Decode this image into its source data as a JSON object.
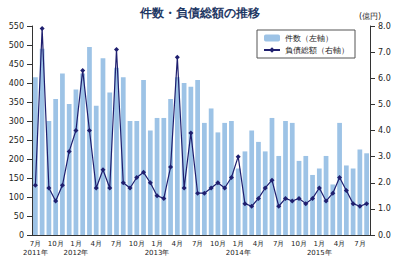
{
  "chart_data": {
    "type": "bar",
    "title": "件数・負債総額の推移",
    "categories": [
      "7月\n2011年",
      null,
      null,
      "10月",
      null,
      null,
      "1月\n2012年",
      null,
      null,
      "4月",
      null,
      null,
      "7月",
      null,
      null,
      "10月",
      null,
      null,
      "1月\n2013年",
      null,
      null,
      "4月",
      null,
      null,
      "7月",
      null,
      null,
      "10月",
      null,
      null,
      "1月\n2014年",
      null,
      null,
      "4月",
      null,
      null,
      "7月",
      null,
      null,
      "10月",
      null,
      null,
      "1月\n2015年",
      null,
      null,
      "4月",
      null,
      null,
      "7月",
      null
    ],
    "series": [
      {
        "name": "件数（左軸）",
        "type": "bar",
        "color": "#9dc3e6",
        "values": [
          415,
          490,
          300,
          358,
          425,
          345,
          383,
          425,
          495,
          340,
          465,
          375,
          440,
          415,
          300,
          300,
          408,
          275,
          308,
          308,
          358,
          415,
          400,
          390,
          408,
          295,
          333,
          270,
          295,
          300,
          175,
          220,
          275,
          245,
          220,
          308,
          208,
          300,
          295,
          195,
          208,
          158,
          175,
          208,
          133,
          295,
          183,
          175,
          225,
          215
        ]
      },
      {
        "name": "負債総額（右軸）",
        "type": "line",
        "axis": "y2",
        "color": "#1f1f6f",
        "marker": "diamond",
        "values": [
          1.9,
          7.9,
          1.8,
          1.3,
          1.9,
          3.2,
          4.0,
          6.3,
          4.0,
          1.8,
          2.5,
          1.8,
          7.1,
          2.0,
          1.8,
          2.2,
          2.4,
          2.0,
          1.5,
          1.4,
          2.6,
          6.8,
          1.8,
          3.9,
          1.6,
          1.6,
          1.8,
          2.0,
          1.8,
          2.2,
          3.0,
          1.2,
          1.1,
          1.4,
          1.8,
          2.1,
          1.1,
          1.4,
          1.3,
          1.4,
          1.2,
          1.4,
          1.8,
          1.3,
          1.6,
          2.2,
          1.7,
          1.2,
          1.1,
          1.2
        ]
      }
    ],
    "ylim": [
      0,
      550
    ],
    "yticks": [
      0,
      50,
      100,
      150,
      200,
      250,
      300,
      350,
      400,
      450,
      500,
      550
    ],
    "y2label": "(億円)",
    "y2lim": [
      0,
      8
    ],
    "y2ticks": [
      {
        "value": 0,
        "label": "0.0"
      },
      {
        "value": 1,
        "label": "1.0"
      },
      {
        "value": 2,
        "label": "2.0"
      },
      {
        "value": 3,
        "label": "3.0"
      },
      {
        "value": 4,
        "label": "4.0"
      },
      {
        "value": 5,
        "label": "5.0"
      },
      {
        "value": 6,
        "label": "6.0"
      },
      {
        "value": 7,
        "label": "7.0"
      },
      {
        "value": 8,
        "label": "8.0"
      }
    ],
    "legend": "upper right",
    "grid": false
  }
}
